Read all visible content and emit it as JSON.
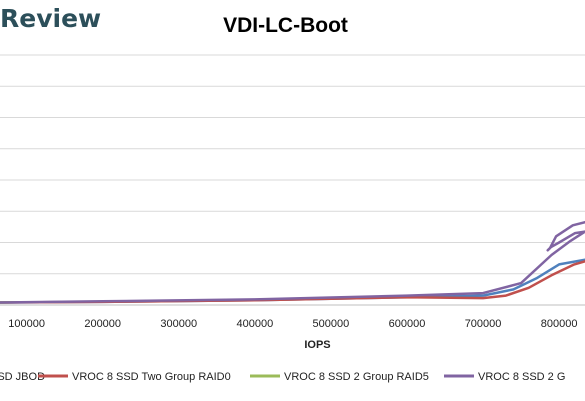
{
  "logo": "Review",
  "chart_data": {
    "type": "line",
    "title": "VDI-LC-Boot",
    "xlabel": "IOPS",
    "ylabel": "",
    "x_ticks": [
      100000,
      200000,
      300000,
      400000,
      500000,
      600000,
      700000,
      800000
    ],
    "xlim": [
      65000,
      834000
    ],
    "ylim": [
      0,
      8
    ],
    "grid": true,
    "legend_position": "bottom",
    "series": [
      {
        "name": "SSD JBOD",
        "color": "#4f81bd",
        "points": [
          [
            65000,
            0.08
          ],
          [
            200000,
            0.1
          ],
          [
            400000,
            0.15
          ],
          [
            600000,
            0.25
          ],
          [
            700000,
            0.3
          ],
          [
            740000,
            0.5
          ],
          [
            770000,
            0.85
          ],
          [
            800000,
            1.3
          ],
          [
            834000,
            1.45
          ]
        ]
      },
      {
        "name": "VROC 8 SSD Two Group RAID0",
        "color": "#c0504d",
        "points": [
          [
            65000,
            0.08
          ],
          [
            200000,
            0.1
          ],
          [
            400000,
            0.15
          ],
          [
            600000,
            0.25
          ],
          [
            700000,
            0.22
          ],
          [
            730000,
            0.3
          ],
          [
            760000,
            0.55
          ],
          [
            790000,
            0.95
          ],
          [
            820000,
            1.3
          ],
          [
            834000,
            1.4
          ]
        ]
      },
      {
        "name": "VROC 8 SSD 2 Group RAID5",
        "color": "#9bbb59",
        "points": [
          [
            65000,
            0.08
          ],
          [
            85000,
            0.09
          ]
        ]
      },
      {
        "name": "VROC 8 SSD 2 G",
        "color": "#8064a2",
        "points": [
          [
            65000,
            0.08
          ],
          [
            200000,
            0.12
          ],
          [
            400000,
            0.18
          ],
          [
            600000,
            0.3
          ],
          [
            700000,
            0.38
          ],
          [
            750000,
            0.7
          ],
          [
            790000,
            1.6
          ],
          [
            815000,
            2.05
          ],
          [
            834000,
            2.35
          ],
          [
            821000,
            2.3
          ],
          [
            800000,
            2.0
          ],
          [
            789000,
            1.85
          ],
          [
            785000,
            1.75
          ],
          [
            788000,
            1.82
          ],
          [
            796000,
            2.2
          ],
          [
            818000,
            2.55
          ],
          [
            834000,
            2.65
          ]
        ]
      }
    ]
  }
}
